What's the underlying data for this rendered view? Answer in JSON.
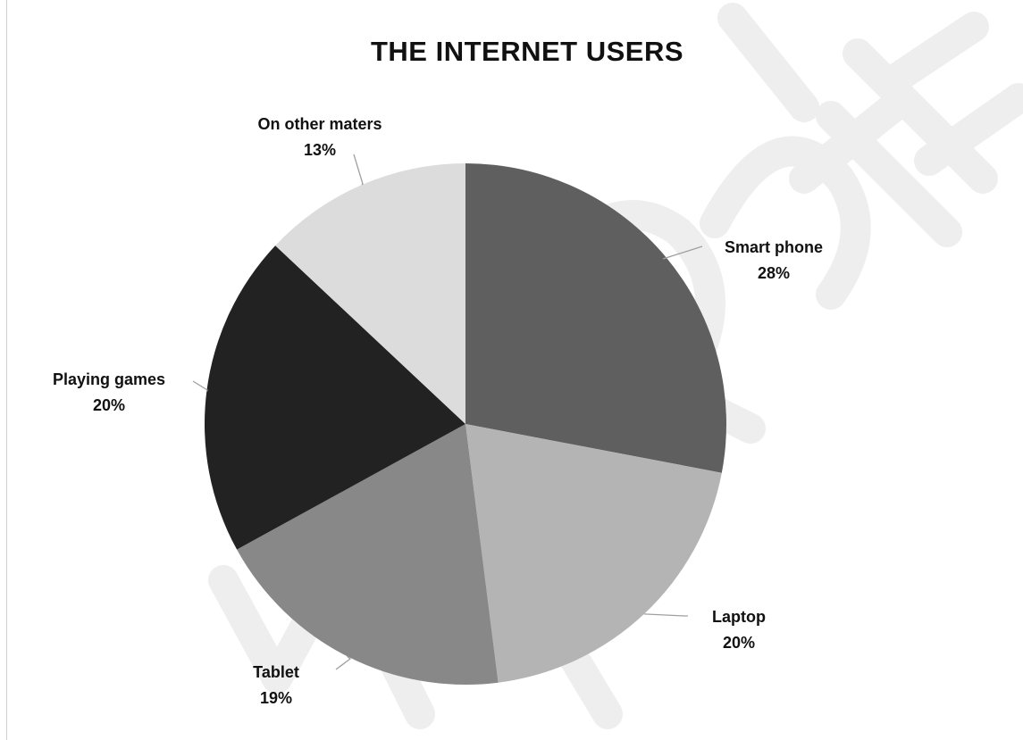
{
  "chart_data": {
    "type": "pie",
    "title": "THE INTERNET USERS",
    "slices": [
      {
        "label": "Smart phone",
        "value": 28,
        "display": "28%",
        "color": "#5f5f5f"
      },
      {
        "label": "Laptop",
        "value": 20,
        "display": "20%",
        "color": "#b4b4b4"
      },
      {
        "label": "Tablet",
        "value": 19,
        "display": "19%",
        "color": "#888888"
      },
      {
        "label": "Playing games",
        "value": 20,
        "display": "20%",
        "color": "#222222"
      },
      {
        "label": "On other maters",
        "value": 13,
        "display": "13%",
        "color": "#dcdcdc"
      }
    ],
    "legend": "none",
    "start": "12 o'clock, clockwise"
  },
  "colors": {
    "background": "#ffffff",
    "title": "#111111",
    "leader": "#a0a0a0",
    "watermark": "#ececec"
  }
}
